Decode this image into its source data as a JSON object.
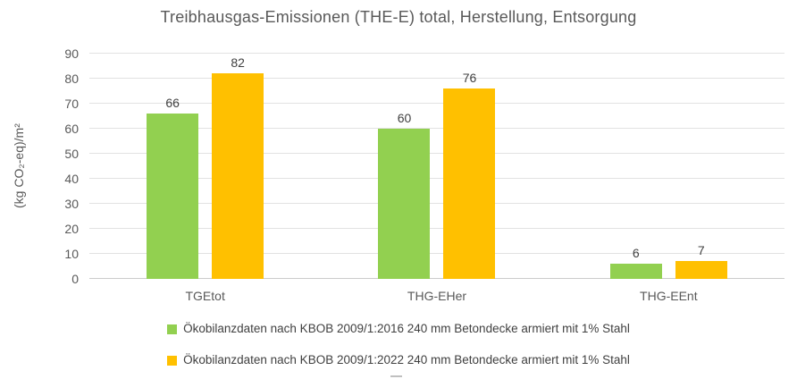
{
  "chart_data": {
    "type": "bar",
    "title": "Treibhausgas-Emissionen (THE-E) total, Herstellung, Entsorgung",
    "ylabel": "(kg CO₂-eq)/m²",
    "xlabel": "",
    "categories": [
      "TGEtot",
      "THG-EHer",
      "THG-EEnt"
    ],
    "series": [
      {
        "name": "Ökobilanzdaten nach KBOB 2009/1:2016 240 mm Betondecke armiert mit 1% Stahl",
        "color": "#92D050",
        "values": [
          66,
          60,
          6
        ]
      },
      {
        "name": "Ökobilanzdaten nach KBOB 2009/1:2022 240 mm Betondecke armiert mit 1% Stahl",
        "color": "#FFC000",
        "values": [
          82,
          76,
          7
        ]
      }
    ],
    "ylim": [
      0,
      90
    ],
    "ytick_step": 10,
    "grid": true,
    "legend_position": "bottom"
  },
  "colors": {
    "series_green": "#92D050",
    "series_orange": "#FFC000",
    "gridline": "#E2E2E2",
    "axis_line": "#CCCCCC",
    "axis_text": "#595959",
    "value_label_text": "#404040"
  }
}
